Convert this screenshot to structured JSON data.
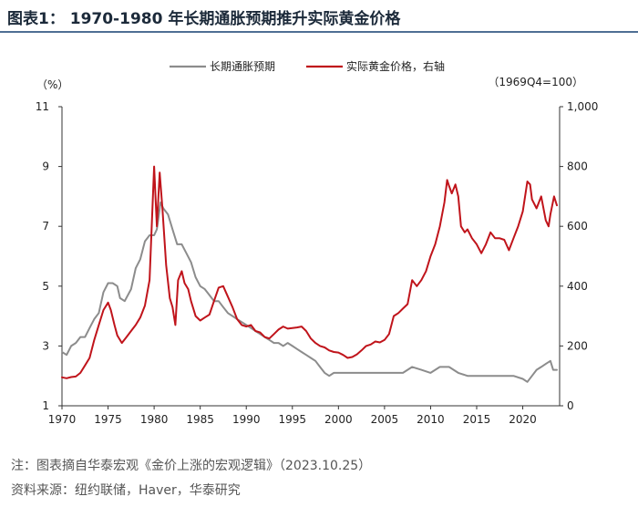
{
  "header": {
    "title": "图表1：  1970-1980 年长期通胀预期推升实际黄金价格"
  },
  "footer": {
    "note": "注：图表摘自华泰宏观《金价上涨的宏观逻辑》（2023.10.25）",
    "source": "资料来源：纽约联储，Haver，华泰研究"
  },
  "chart_data": {
    "type": "line",
    "title": "",
    "left_unit": "（%）",
    "right_unit": "（1969Q4=100）",
    "legend_placement": "top-center",
    "xlim": [
      1970,
      2024
    ],
    "x_ticks": [
      "1970",
      "1975",
      "1980",
      "1985",
      "1990",
      "1995",
      "2000",
      "2005",
      "2010",
      "2015",
      "2020"
    ],
    "y_left": {
      "range": [
        1,
        11
      ],
      "ticks": [
        "1",
        "3",
        "5",
        "7",
        "9",
        "11"
      ]
    },
    "y_right": {
      "range": [
        0,
        1000
      ],
      "ticks": [
        "0",
        "200",
        "400",
        "600",
        "800",
        "1,000"
      ]
    },
    "grid": false,
    "series": [
      {
        "name": "长期通胀预期",
        "axis": "left",
        "color": "#8c8c8c",
        "points": [
          [
            1970.0,
            2.8
          ],
          [
            1970.5,
            2.7
          ],
          [
            1971.0,
            3.0
          ],
          [
            1971.5,
            3.1
          ],
          [
            1972.0,
            3.3
          ],
          [
            1972.5,
            3.3
          ],
          [
            1973.0,
            3.6
          ],
          [
            1973.5,
            3.9
          ],
          [
            1974.0,
            4.1
          ],
          [
            1974.5,
            4.8
          ],
          [
            1975.0,
            5.1
          ],
          [
            1975.5,
            5.1
          ],
          [
            1976.0,
            5.0
          ],
          [
            1976.3,
            4.6
          ],
          [
            1976.8,
            4.5
          ],
          [
            1977.5,
            4.9
          ],
          [
            1978.0,
            5.6
          ],
          [
            1978.5,
            5.9
          ],
          [
            1979.0,
            6.5
          ],
          [
            1979.5,
            6.7
          ],
          [
            1980.0,
            6.7
          ],
          [
            1980.3,
            6.9
          ],
          [
            1980.7,
            7.8
          ],
          [
            1981.0,
            7.6
          ],
          [
            1981.5,
            7.4
          ],
          [
            1982.0,
            6.9
          ],
          [
            1982.5,
            6.4
          ],
          [
            1983.0,
            6.4
          ],
          [
            1983.5,
            6.1
          ],
          [
            1984.0,
            5.8
          ],
          [
            1984.5,
            5.3
          ],
          [
            1985.0,
            5.0
          ],
          [
            1985.5,
            4.9
          ],
          [
            1986.0,
            4.7
          ],
          [
            1986.5,
            4.5
          ],
          [
            1987.0,
            4.5
          ],
          [
            1987.5,
            4.3
          ],
          [
            1988.0,
            4.1
          ],
          [
            1988.5,
            4.0
          ],
          [
            1989.0,
            3.9
          ],
          [
            1989.5,
            3.8
          ],
          [
            1990.0,
            3.7
          ],
          [
            1990.5,
            3.6
          ],
          [
            1991.0,
            3.5
          ],
          [
            1991.5,
            3.4
          ],
          [
            1992.0,
            3.3
          ],
          [
            1992.5,
            3.2
          ],
          [
            1993.0,
            3.1
          ],
          [
            1993.5,
            3.1
          ],
          [
            1994.0,
            3.0
          ],
          [
            1994.5,
            3.1
          ],
          [
            1995.0,
            3.0
          ],
          [
            1995.5,
            2.9
          ],
          [
            1996.0,
            2.8
          ],
          [
            1996.5,
            2.7
          ],
          [
            1997.0,
            2.6
          ],
          [
            1997.5,
            2.5
          ],
          [
            1998.0,
            2.3
          ],
          [
            1998.5,
            2.1
          ],
          [
            1999.0,
            2.0
          ],
          [
            1999.5,
            2.1
          ],
          [
            2000.0,
            2.1
          ],
          [
            2002.0,
            2.1
          ],
          [
            2004.0,
            2.1
          ],
          [
            2006.0,
            2.1
          ],
          [
            2007.0,
            2.1
          ],
          [
            2008.0,
            2.3
          ],
          [
            2009.0,
            2.2
          ],
          [
            2010.0,
            2.1
          ],
          [
            2011.0,
            2.3
          ],
          [
            2012.0,
            2.3
          ],
          [
            2013.0,
            2.1
          ],
          [
            2014.0,
            2.0
          ],
          [
            2015.0,
            2.0
          ],
          [
            2016.0,
            2.0
          ],
          [
            2017.0,
            2.0
          ],
          [
            2018.0,
            2.0
          ],
          [
            2019.0,
            2.0
          ],
          [
            2020.0,
            1.9
          ],
          [
            2020.5,
            1.8
          ],
          [
            2021.0,
            2.0
          ],
          [
            2021.5,
            2.2
          ],
          [
            2022.0,
            2.3
          ],
          [
            2022.5,
            2.4
          ],
          [
            2023.0,
            2.5
          ],
          [
            2023.3,
            2.2
          ],
          [
            2023.7,
            2.2
          ]
        ]
      },
      {
        "name": "实际黄金价格，右轴",
        "axis": "right",
        "color": "#c0141b",
        "points": [
          [
            1970.0,
            95
          ],
          [
            1970.5,
            92
          ],
          [
            1971.0,
            96
          ],
          [
            1971.5,
            98
          ],
          [
            1972.0,
            110
          ],
          [
            1972.5,
            135
          ],
          [
            1973.0,
            160
          ],
          [
            1973.5,
            220
          ],
          [
            1974.0,
            270
          ],
          [
            1974.5,
            320
          ],
          [
            1975.0,
            345
          ],
          [
            1975.3,
            320
          ],
          [
            1975.7,
            270
          ],
          [
            1976.0,
            235
          ],
          [
            1976.5,
            210
          ],
          [
            1977.0,
            230
          ],
          [
            1977.5,
            250
          ],
          [
            1978.0,
            270
          ],
          [
            1978.5,
            295
          ],
          [
            1979.0,
            335
          ],
          [
            1979.5,
            420
          ],
          [
            1980.0,
            800
          ],
          [
            1980.3,
            600
          ],
          [
            1980.6,
            780
          ],
          [
            1980.9,
            660
          ],
          [
            1981.3,
            470
          ],
          [
            1981.7,
            360
          ],
          [
            1982.0,
            330
          ],
          [
            1982.3,
            270
          ],
          [
            1982.6,
            420
          ],
          [
            1983.0,
            450
          ],
          [
            1983.3,
            410
          ],
          [
            1983.7,
            390
          ],
          [
            1984.0,
            350
          ],
          [
            1984.5,
            300
          ],
          [
            1985.0,
            285
          ],
          [
            1985.5,
            295
          ],
          [
            1986.0,
            305
          ],
          [
            1986.5,
            350
          ],
          [
            1987.0,
            395
          ],
          [
            1987.5,
            400
          ],
          [
            1988.0,
            365
          ],
          [
            1988.5,
            330
          ],
          [
            1989.0,
            290
          ],
          [
            1989.5,
            270
          ],
          [
            1990.0,
            265
          ],
          [
            1990.5,
            270
          ],
          [
            1991.0,
            250
          ],
          [
            1991.5,
            245
          ],
          [
            1992.0,
            230
          ],
          [
            1992.5,
            225
          ],
          [
            1993.0,
            240
          ],
          [
            1993.5,
            255
          ],
          [
            1994.0,
            265
          ],
          [
            1994.5,
            258
          ],
          [
            1995.0,
            260
          ],
          [
            1995.5,
            262
          ],
          [
            1996.0,
            265
          ],
          [
            1996.5,
            250
          ],
          [
            1997.0,
            225
          ],
          [
            1997.5,
            210
          ],
          [
            1998.0,
            200
          ],
          [
            1998.5,
            195
          ],
          [
            1999.0,
            185
          ],
          [
            1999.5,
            180
          ],
          [
            2000.0,
            178
          ],
          [
            2000.5,
            170
          ],
          [
            2001.0,
            160
          ],
          [
            2001.5,
            163
          ],
          [
            2002.0,
            172
          ],
          [
            2002.5,
            185
          ],
          [
            2003.0,
            200
          ],
          [
            2003.5,
            205
          ],
          [
            2004.0,
            215
          ],
          [
            2004.5,
            212
          ],
          [
            2005.0,
            220
          ],
          [
            2005.5,
            240
          ],
          [
            2006.0,
            300
          ],
          [
            2006.5,
            310
          ],
          [
            2007.0,
            325
          ],
          [
            2007.5,
            340
          ],
          [
            2008.0,
            420
          ],
          [
            2008.5,
            400
          ],
          [
            2009.0,
            420
          ],
          [
            2009.5,
            450
          ],
          [
            2010.0,
            500
          ],
          [
            2010.5,
            540
          ],
          [
            2011.0,
            600
          ],
          [
            2011.5,
            680
          ],
          [
            2011.8,
            755
          ],
          [
            2012.0,
            735
          ],
          [
            2012.3,
            710
          ],
          [
            2012.7,
            740
          ],
          [
            2013.0,
            700
          ],
          [
            2013.3,
            600
          ],
          [
            2013.7,
            580
          ],
          [
            2014.0,
            590
          ],
          [
            2014.5,
            560
          ],
          [
            2015.0,
            540
          ],
          [
            2015.5,
            510
          ],
          [
            2016.0,
            540
          ],
          [
            2016.5,
            580
          ],
          [
            2017.0,
            560
          ],
          [
            2017.5,
            560
          ],
          [
            2018.0,
            555
          ],
          [
            2018.5,
            520
          ],
          [
            2019.0,
            560
          ],
          [
            2019.5,
            600
          ],
          [
            2020.0,
            650
          ],
          [
            2020.5,
            750
          ],
          [
            2020.8,
            740
          ],
          [
            2021.0,
            690
          ],
          [
            2021.5,
            660
          ],
          [
            2022.0,
            700
          ],
          [
            2022.5,
            620
          ],
          [
            2022.8,
            600
          ],
          [
            2023.0,
            640
          ],
          [
            2023.4,
            700
          ],
          [
            2023.7,
            670
          ]
        ]
      }
    ]
  }
}
